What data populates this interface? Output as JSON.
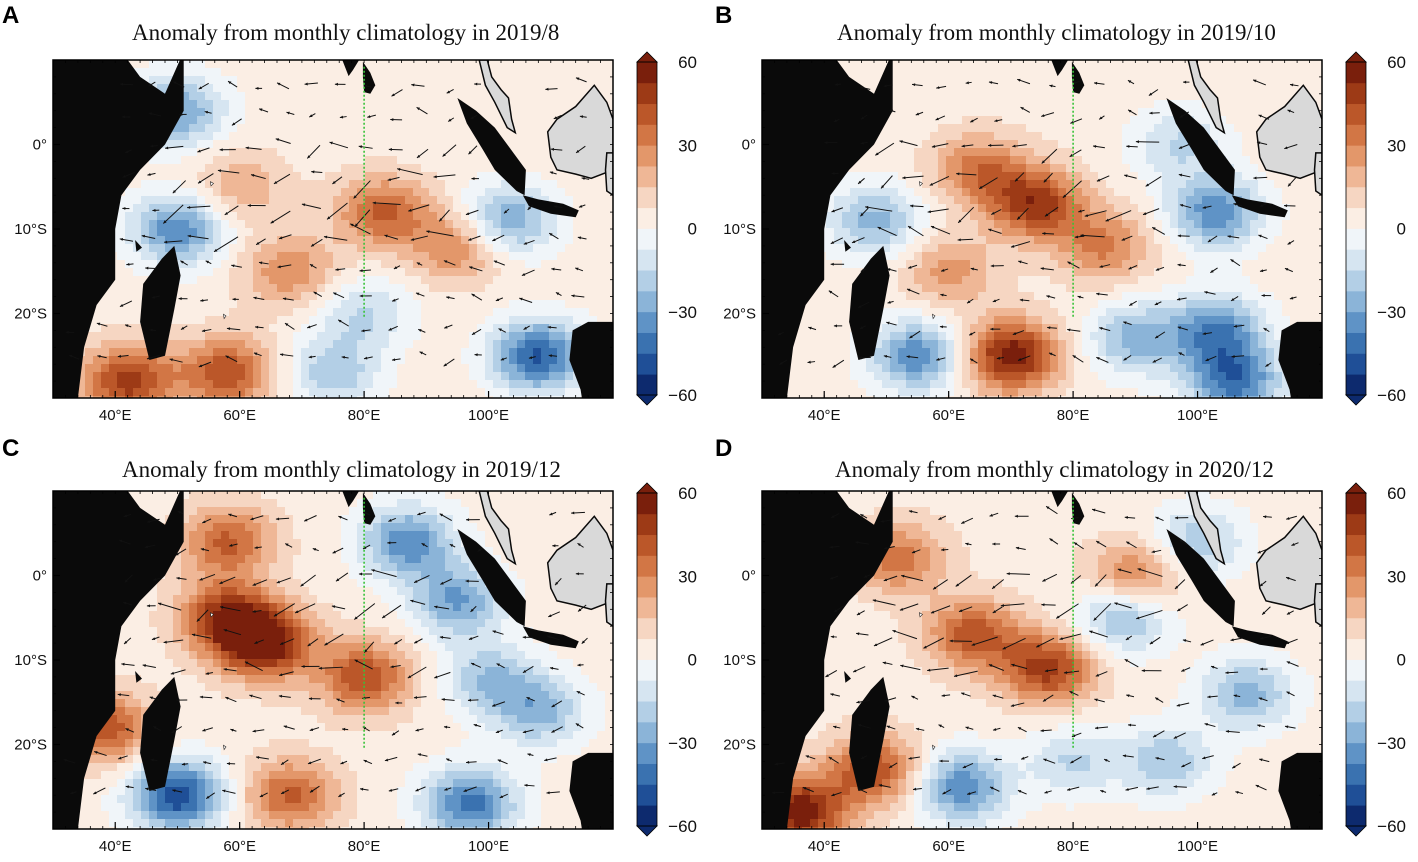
{
  "colorbar": {
    "ticks": [
      60,
      30,
      0,
      -30,
      -60
    ],
    "tick_labels": [
      "60",
      "30",
      "0",
      "−30",
      "−60"
    ],
    "levels": 20,
    "colors_low_to_high": [
      "#0d2a6e",
      "#1f4f97",
      "#3a72b0",
      "#5f93c6",
      "#8bb4d8",
      "#b3cfe6",
      "#d6e5f1",
      "#f0f5f9",
      "#fbeee4",
      "#f6d6c2",
      "#efb796",
      "#e3976a",
      "#d27645",
      "#bb5729",
      "#9d3a16",
      "#7a1f0c"
    ]
  },
  "axes": {
    "x_ticks": [
      "40°E",
      "60°E",
      "80°E",
      "100°E"
    ],
    "y_ticks": [
      "0°",
      "10°S",
      "20°S"
    ],
    "x_range": [
      30,
      120
    ],
    "y_range": [
      -30,
      10
    ]
  },
  "chart_data": [
    {
      "type": "heatmap",
      "panel": "A",
      "title": "Anomaly from monthly climatology in 2019/8",
      "vector_overlay": "wind anomaly arrows",
      "section_line_lon": 80,
      "anomaly_features": [
        {
          "lon": 83,
          "lat": -8,
          "value": 35
        },
        {
          "lon": 95,
          "lat": -12,
          "value": 28
        },
        {
          "lon": 68,
          "lat": -15,
          "value": 25
        },
        {
          "lon": 60,
          "lat": -5,
          "value": 18
        },
        {
          "lon": 50,
          "lat": 4,
          "value": -35
        },
        {
          "lon": 50,
          "lat": -10,
          "value": -40
        },
        {
          "lon": 103,
          "lat": -9,
          "value": -35
        },
        {
          "lon": 108,
          "lat": -25,
          "value": -50
        },
        {
          "lon": 80,
          "lat": -20,
          "value": -20
        },
        {
          "lon": 42,
          "lat": -28,
          "value": 45
        },
        {
          "lon": 58,
          "lat": -27,
          "value": 40
        },
        {
          "lon": 75,
          "lat": -27,
          "value": -25
        }
      ]
    },
    {
      "type": "heatmap",
      "panel": "B",
      "title": "Anomaly from monthly climatology in 2019/10",
      "vector_overlay": "wind anomaly arrows",
      "section_line_lon": 80,
      "anomaly_features": [
        {
          "lon": 74,
          "lat": -7,
          "value": 45
        },
        {
          "lon": 65,
          "lat": -3,
          "value": 30
        },
        {
          "lon": 85,
          "lat": -12,
          "value": 28
        },
        {
          "lon": 60,
          "lat": -15,
          "value": 22
        },
        {
          "lon": 97,
          "lat": 0,
          "value": -20
        },
        {
          "lon": 103,
          "lat": -8,
          "value": -40
        },
        {
          "lon": 48,
          "lat": -9,
          "value": -30
        },
        {
          "lon": 70,
          "lat": -25,
          "value": 55
        },
        {
          "lon": 55,
          "lat": -25,
          "value": -40
        },
        {
          "lon": 103,
          "lat": -22,
          "value": -40
        },
        {
          "lon": 106,
          "lat": -28,
          "value": -45
        },
        {
          "lon": 90,
          "lat": -23,
          "value": -30
        }
      ]
    },
    {
      "type": "heatmap",
      "panel": "C",
      "title": "Anomaly from monthly climatology in 2019/12",
      "vector_overlay": "wind anomaly arrows",
      "section_line_lon": 80,
      "anomaly_features": [
        {
          "lon": 64,
          "lat": -8,
          "value": 55
        },
        {
          "lon": 58,
          "lat": -5,
          "value": 45
        },
        {
          "lon": 80,
          "lat": -12,
          "value": 40
        },
        {
          "lon": 58,
          "lat": 4,
          "value": 35
        },
        {
          "lon": 87,
          "lat": 4,
          "value": -40
        },
        {
          "lon": 95,
          "lat": -3,
          "value": -35
        },
        {
          "lon": 100,
          "lat": -12,
          "value": -25
        },
        {
          "lon": 108,
          "lat": -16,
          "value": -30
        },
        {
          "lon": 50,
          "lat": -26,
          "value": -55
        },
        {
          "lon": 97,
          "lat": -27,
          "value": -45
        },
        {
          "lon": 68,
          "lat": -26,
          "value": 35
        },
        {
          "lon": 38,
          "lat": -18,
          "value": 40
        }
      ]
    },
    {
      "type": "heatmap",
      "panel": "D",
      "title": "Anomaly from monthly climatology in 2020/12",
      "vector_overlay": "wind anomaly arrows",
      "section_line_lon": 80,
      "anomaly_features": [
        {
          "lon": 76,
          "lat": -11,
          "value": 45
        },
        {
          "lon": 64,
          "lat": -7,
          "value": 38
        },
        {
          "lon": 52,
          "lat": 2,
          "value": 30
        },
        {
          "lon": 90,
          "lat": 0,
          "value": 30
        },
        {
          "lon": 88,
          "lat": -5,
          "value": -30
        },
        {
          "lon": 100,
          "lat": 4,
          "value": -25
        },
        {
          "lon": 108,
          "lat": -14,
          "value": -30
        },
        {
          "lon": 62,
          "lat": -25,
          "value": -40
        },
        {
          "lon": 36,
          "lat": -28,
          "value": 55
        },
        {
          "lon": 48,
          "lat": -23,
          "value": 40
        },
        {
          "lon": 95,
          "lat": -22,
          "value": -25
        },
        {
          "lon": 80,
          "lat": -22,
          "value": -20
        }
      ]
    }
  ]
}
